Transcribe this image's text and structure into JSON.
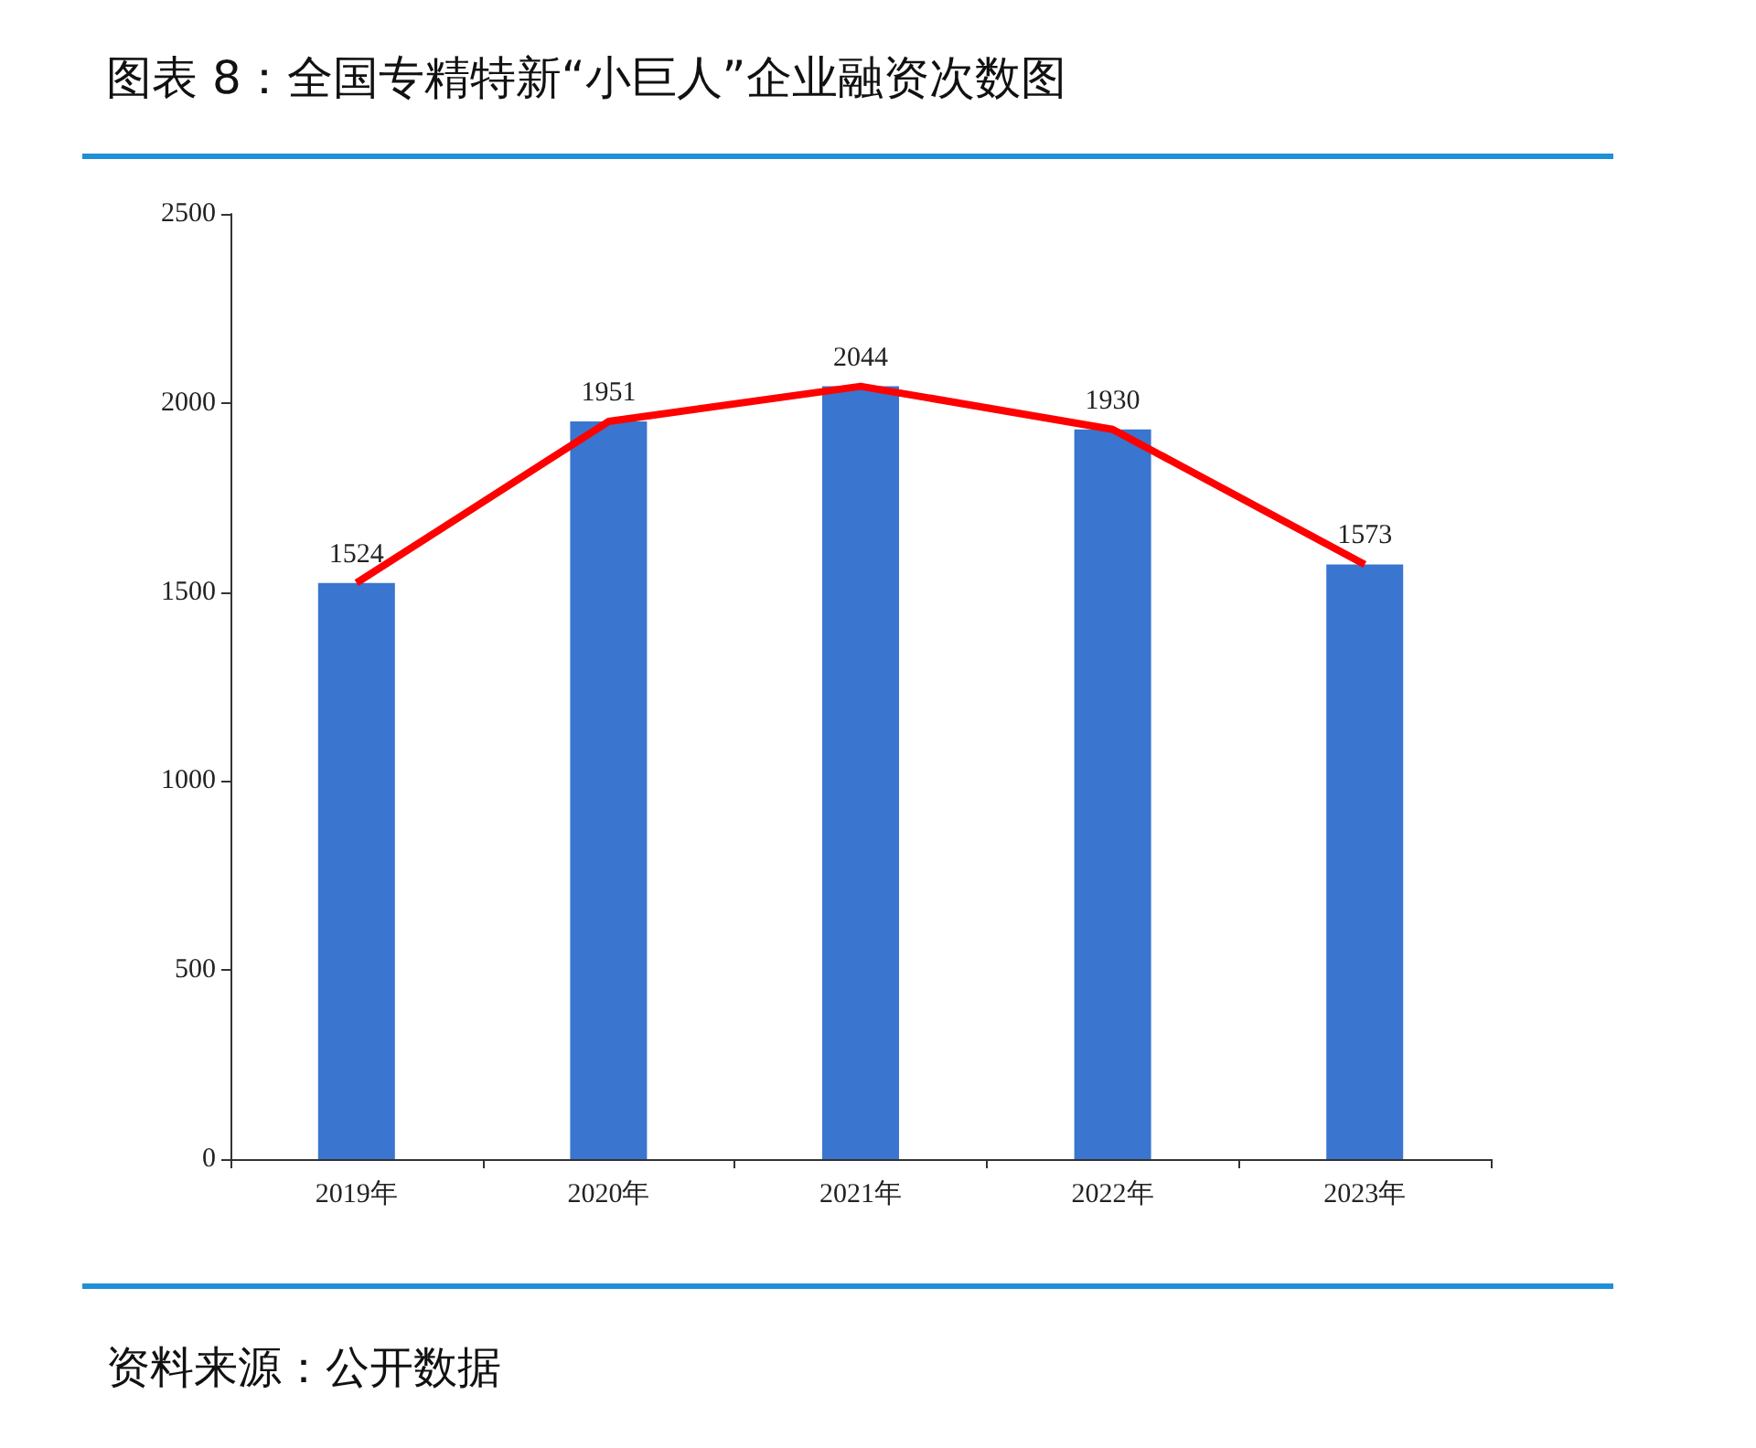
{
  "chart_data": {
    "type": "bar",
    "title": "图表 8：全国专精特新“小巨人”企业融资次数图",
    "categories": [
      "2019年",
      "2020年",
      "2021年",
      "2022年",
      "2023年"
    ],
    "series": [
      {
        "color": "#3a75cf",
        "values": [
          1524,
          1951,
          2044,
          1930,
          1573
        ],
        "value_labels": [
          "1524",
          "1951",
          "2044",
          "1930",
          "1573"
        ]
      },
      {
        "type": "line",
        "color": "#ff0000",
        "values": [
          1524,
          1951,
          2044,
          1930,
          1573
        ]
      }
    ],
    "ylim": [
      0,
      2500
    ],
    "yticks": [
      0,
      500,
      1000,
      1500,
      2000,
      2500
    ],
    "grid": false,
    "marker": "none",
    "line_style": "solid",
    "annotations": [
      "资料来源：公开数据"
    ]
  }
}
